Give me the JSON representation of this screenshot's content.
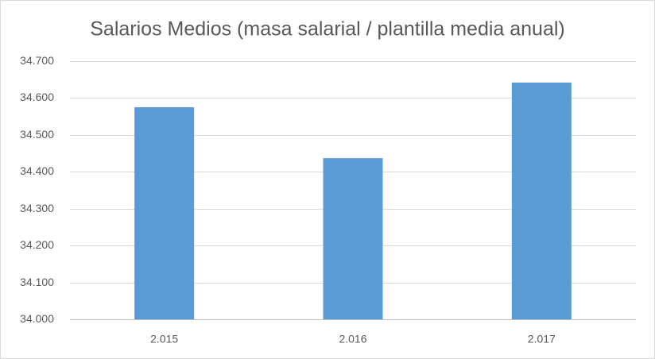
{
  "chart_data": {
    "type": "bar",
    "title": "Salarios Medios (masa salarial / plantilla media anual)",
    "categories": [
      "2.015",
      "2.016",
      "2.017"
    ],
    "values": [
      34575,
      34437,
      34642
    ],
    "color": "#5b9bd5",
    "ylim": [
      34000,
      34700
    ],
    "yticks": [
      {
        "value": 34000,
        "label": "34.000"
      },
      {
        "value": 34100,
        "label": "34.100"
      },
      {
        "value": 34200,
        "label": "34.200"
      },
      {
        "value": 34300,
        "label": "34.300"
      },
      {
        "value": 34400,
        "label": "34.400"
      },
      {
        "value": 34500,
        "label": "34.500"
      },
      {
        "value": 34600,
        "label": "34.600"
      },
      {
        "value": 34700,
        "label": "34.700"
      }
    ],
    "grid": true
  }
}
